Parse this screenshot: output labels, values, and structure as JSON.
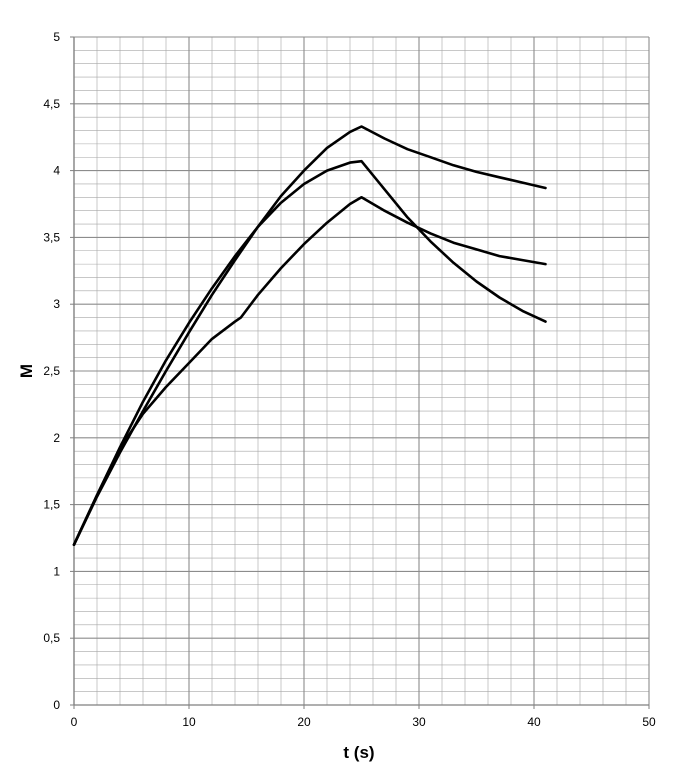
{
  "chart_data": {
    "type": "line",
    "title": "",
    "xlabel": "t (s)",
    "ylabel": "M",
    "xlim": [
      0,
      50
    ],
    "ylim": [
      0,
      5
    ],
    "x_ticks": [
      0,
      10,
      20,
      30,
      40,
      50
    ],
    "x_tick_labels": [
      "0",
      "10",
      "20",
      "30",
      "40",
      "50"
    ],
    "y_ticks": [
      0,
      0.5,
      1,
      1.5,
      2,
      2.5,
      3,
      3.5,
      4,
      4.5,
      5
    ],
    "y_tick_labels": [
      "0",
      "0,5",
      "1",
      "1,5",
      "2",
      "2,5",
      "3",
      "3,5",
      "4",
      "4,5",
      "5"
    ],
    "grid": {
      "major": true,
      "minor": true,
      "x_minor_step": 2,
      "y_minor_step": 0.1
    },
    "legend": "none",
    "line_color": "#000000",
    "grid_color": "#a6a6a6",
    "series": [
      {
        "x": [
          0,
          2,
          4,
          6,
          8,
          10,
          12,
          14,
          16,
          18,
          20,
          22,
          24,
          25,
          27,
          29,
          31,
          33,
          35,
          37,
          39,
          41
        ],
        "y": [
          1.2,
          1.56,
          1.89,
          2.2,
          2.5,
          2.79,
          3.07,
          3.33,
          3.58,
          3.81,
          4.0,
          4.17,
          4.29,
          4.33,
          4.24,
          4.16,
          4.1,
          4.04,
          3.99,
          3.95,
          3.91,
          3.87
        ]
      },
      {
        "x": [
          0,
          2,
          4,
          6,
          8,
          10,
          12,
          14,
          16,
          18,
          20,
          22,
          24,
          25,
          27,
          29,
          31,
          33,
          35,
          37,
          39,
          41
        ],
        "y": [
          1.2,
          1.57,
          1.93,
          2.27,
          2.58,
          2.86,
          3.12,
          3.36,
          3.58,
          3.76,
          3.9,
          4.0,
          4.06,
          4.07,
          3.86,
          3.65,
          3.47,
          3.31,
          3.17,
          3.05,
          2.95,
          2.87
        ]
      },
      {
        "x": [
          0,
          2,
          4,
          6,
          8,
          10,
          12,
          14,
          14.5,
          16,
          18,
          20,
          22,
          24,
          25,
          27,
          29,
          31,
          33,
          35,
          37,
          39,
          41
        ],
        "y": [
          1.2,
          1.57,
          1.92,
          2.18,
          2.38,
          2.56,
          2.74,
          2.87,
          2.9,
          3.07,
          3.27,
          3.45,
          3.61,
          3.75,
          3.8,
          3.7,
          3.61,
          3.53,
          3.46,
          3.41,
          3.36,
          3.33,
          3.3
        ]
      }
    ]
  }
}
